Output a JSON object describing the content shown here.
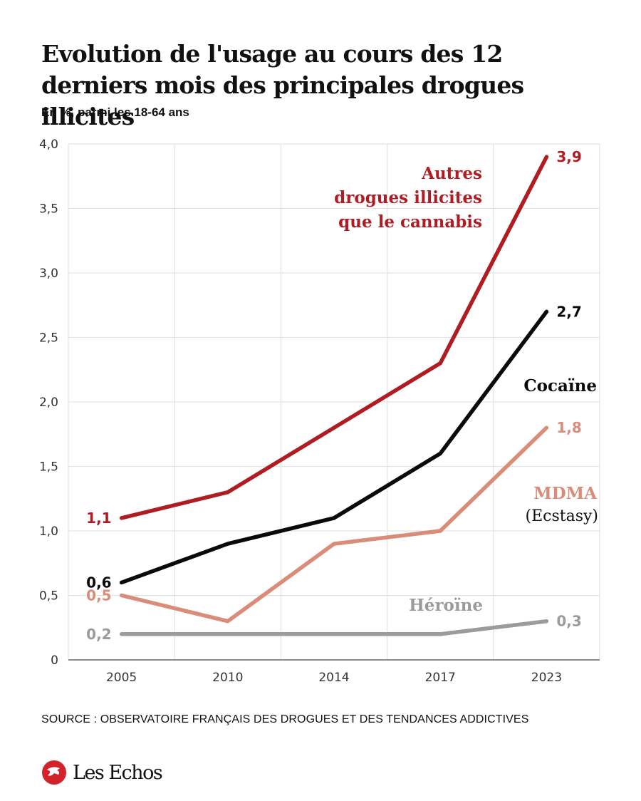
{
  "header": {
    "title": "Evolution de l'usage au cours des 12 derniers mois des principales drogues illicites",
    "subtitle": "En %, parmi les 18-64 ans"
  },
  "footer": {
    "source": "SOURCE : OBSERVATOIRE FRANÇAIS DES DROGUES ET DES TENDANCES ADDICTIVES",
    "brand": "Les Echos",
    "brand_icon": "les-echos-logo-icon"
  },
  "chart_data": {
    "type": "line",
    "title": "Evolution de l'usage au cours des 12 derniers mois des principales drogues illicites",
    "subtitle": "En %, parmi les 18-64 ans",
    "xlabel": "",
    "ylabel": "",
    "categories": [
      "2005",
      "2010",
      "2014",
      "2017",
      "2023"
    ],
    "ylim": [
      0,
      4.0
    ],
    "yticks": [
      0,
      0.5,
      1.0,
      1.5,
      2.0,
      2.5,
      3.0,
      3.5,
      4.0
    ],
    "ytick_labels": [
      "0",
      "0,5",
      "1,0",
      "1,5",
      "2,0",
      "2,5",
      "3,0",
      "3,5",
      "4,0"
    ],
    "grid": true,
    "legend": "inline labels",
    "series": [
      {
        "name": "Autres drogues illicites que le cannabis",
        "label_lines": [
          "Autres",
          "drogues illicites",
          "que le cannabis"
        ],
        "color": "#b01c22",
        "values": [
          1.1,
          1.3,
          1.8,
          2.3,
          3.9
        ],
        "start_label": "1,1",
        "end_label": "3,9"
      },
      {
        "name": "Cocaïne",
        "label_lines": [
          "Cocaïne"
        ],
        "color": "#0a0a0a",
        "values": [
          0.6,
          0.9,
          1.1,
          1.6,
          2.7
        ],
        "start_label": "0,6",
        "end_label": "2,7"
      },
      {
        "name": "MDMA (Ecstasy)",
        "label_lines": [
          "MDMA",
          "(Ecstasy)"
        ],
        "color": "#d98c78",
        "values": [
          0.5,
          0.3,
          0.9,
          1.0,
          1.8
        ],
        "start_label": "0,5",
        "end_label": "1,8"
      },
      {
        "name": "Héroïne",
        "label_lines": [
          "Héroïne"
        ],
        "color": "#9b9b9b",
        "values": [
          0.2,
          0.2,
          0.2,
          0.2,
          0.3
        ],
        "start_label": "0,2",
        "end_label": "0,3"
      }
    ]
  }
}
